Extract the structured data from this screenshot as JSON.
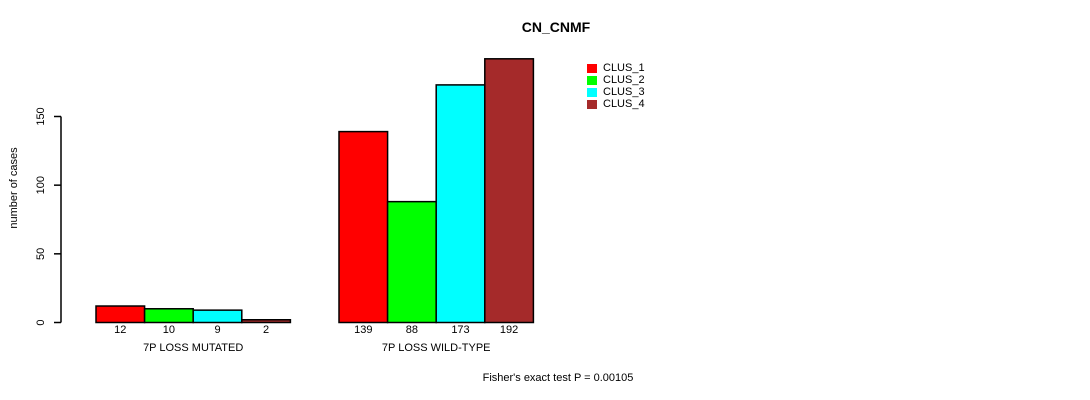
{
  "chart_data": {
    "type": "bar",
    "title": "CN_CNMF",
    "ylabel": "number of cases",
    "xlabel": "",
    "categories": [
      "7P LOSS MUTATED",
      "7P LOSS WILD-TYPE"
    ],
    "series": [
      {
        "name": "CLUS_1",
        "color": "#ff0000",
        "values": [
          12,
          139
        ]
      },
      {
        "name": "CLUS_2",
        "color": "#00ff00",
        "values": [
          10,
          88
        ]
      },
      {
        "name": "CLUS_3",
        "color": "#00ffff",
        "values": [
          9,
          173
        ]
      },
      {
        "name": "CLUS_4",
        "color": "#a52a2a",
        "values": [
          2,
          192
        ]
      }
    ],
    "bar_value_labels": [
      [
        "12",
        "10",
        "9",
        "2"
      ],
      [
        "139",
        "88",
        "173",
        "192"
      ]
    ],
    "yticks": [
      0,
      50,
      100,
      150
    ],
    "ylim": [
      0,
      192
    ],
    "grid": false,
    "legend_position": "top-right",
    "annotation": "Fisher's exact test P = 0.00105",
    "bar_border_color": "#000000",
    "axis_color": "#000000"
  }
}
